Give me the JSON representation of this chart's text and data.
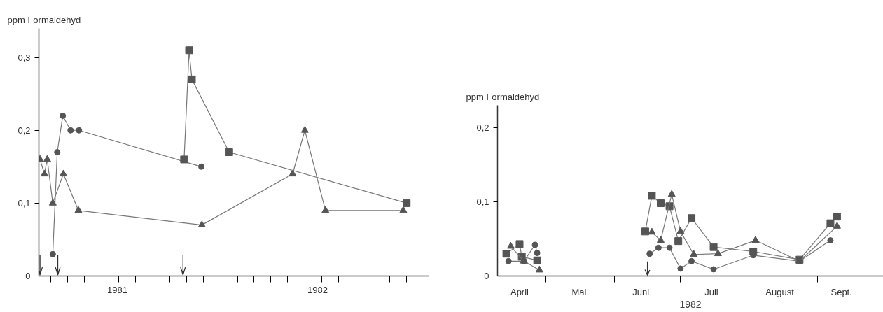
{
  "chart_data": [
    {
      "type": "line",
      "ylabel": "ppm Formaldehyd",
      "grid": false,
      "xlim": [
        "1981-02-08",
        "1983-01-10"
      ],
      "ylim": [
        0,
        0.34
      ],
      "yticks": [
        0,
        {
          "value": 0.1,
          "label": "0,1"
        },
        {
          "value": 0.2,
          "label": "0,2"
        },
        {
          "value": 0.3,
          "label": "0,3"
        }
      ],
      "xticks": [
        {
          "value": "1981-03-01",
          "label": null
        },
        {
          "value": "1981-04-01",
          "label": null
        },
        {
          "value": "1981-05-01",
          "label": null
        },
        {
          "value": "1981-06-01",
          "label": null
        },
        {
          "value": "1981-07-01",
          "label": null
        },
        {
          "value": "1981-08-01",
          "label": null
        },
        {
          "value": "1981-09-01",
          "label": null
        },
        {
          "value": "1981-10-01",
          "label": null
        },
        {
          "value": "1981-11-01",
          "label": null
        },
        {
          "value": "1981-12-01",
          "label": null
        },
        {
          "value": "1982-01-01",
          "label": null
        },
        {
          "value": "1982-02-01",
          "label": null
        },
        {
          "value": "1982-03-01",
          "label": null
        },
        {
          "value": "1982-04-01",
          "label": null
        },
        {
          "value": "1982-05-01",
          "label": null
        },
        {
          "value": "1982-06-01",
          "label": null
        },
        {
          "value": "1982-07-01",
          "label": null
        },
        {
          "value": "1982-08-01",
          "label": null
        },
        {
          "value": "1982-09-01",
          "label": null
        },
        {
          "value": "1982-10-01",
          "label": null
        },
        {
          "value": "1982-11-01",
          "label": null
        },
        {
          "value": "1982-12-01",
          "label": null
        },
        {
          "value": "1983-01-01",
          "label": null
        },
        {
          "value": "1981-06-29",
          "label": "1981"
        },
        {
          "value": "1982-06-24",
          "label": "1982"
        }
      ],
      "ref_lines": [
        {
          "axis": "x",
          "value": "1981-02-10"
        },
        {
          "axis": "x",
          "value": "1981-03-14"
        },
        {
          "axis": "x",
          "value": "1981-10-25"
        }
      ],
      "series": [
        {
          "color": "#555555",
          "marker": "triangle",
          "x": [
            "1981-02-10",
            "1981-02-18",
            "1981-02-23",
            "1981-03-05",
            "1981-03-24",
            "1981-04-20",
            "1981-11-28",
            "1982-05-10",
            "1982-06-01",
            "1982-07-08",
            "1982-11-25"
          ],
          "values": [
            0.16,
            0.14,
            0.16,
            0.1,
            0.14,
            0.09,
            0.07,
            0.14,
            0.2,
            0.09,
            0.09
          ]
        },
        {
          "color": "#555555",
          "marker": "circle",
          "x": [
            "1981-03-05",
            "1981-03-13",
            "1981-03-23",
            "1981-04-06",
            "1981-04-21",
            "1981-11-27"
          ],
          "values": [
            0.03,
            0.17,
            0.22,
            0.2,
            0.2,
            0.15
          ]
        },
        {
          "color": "#555555",
          "marker": "square",
          "x": [
            "1981-10-27",
            "1981-11-05",
            "1981-11-10",
            "1982-01-16",
            "1982-12-01"
          ],
          "values": [
            0.16,
            0.31,
            0.27,
            0.17,
            0.1
          ]
        }
      ]
    },
    {
      "type": "line",
      "ylabel": "ppm Formaldehyd",
      "xlabel": "1982",
      "grid": false,
      "xlim": [
        "1982-04-09",
        "1982-10-01"
      ],
      "ylim": [
        0,
        0.23
      ],
      "yticks": [
        0,
        {
          "value": 0.1,
          "label": "0,1"
        },
        {
          "value": 0.2,
          "label": "0,2"
        }
      ],
      "xticks": [
        {
          "value": "1982-05-01",
          "label": null
        },
        {
          "value": "1982-06-01",
          "label": null
        },
        {
          "value": "1982-07-01",
          "label": null
        },
        {
          "value": "1982-08-01",
          "label": null
        },
        {
          "value": "1982-09-01",
          "label": null
        },
        {
          "value": "1982-04-19",
          "label": "April"
        },
        {
          "value": "1982-05-16",
          "label": "Mai"
        },
        {
          "value": "1982-06-13",
          "label": "Juni"
        },
        {
          "value": "1982-07-15",
          "label": "Juli"
        },
        {
          "value": "1982-08-15",
          "label": "August"
        },
        {
          "value": "1982-09-12",
          "label": "Sept."
        }
      ],
      "ref_lines": [
        {
          "axis": "x",
          "value": "1982-06-16"
        }
      ],
      "series": [
        {
          "color": "#555555",
          "marker": "square",
          "x": [
            "1982-04-13",
            "1982-04-19",
            "1982-04-20",
            "1982-04-27",
            "1982-05-20",
            "1982-06-15",
            "1982-06-18",
            "1982-06-22",
            "1982-06-26",
            "1982-06-30",
            "1982-07-06",
            "1982-07-16",
            "1982-08-03",
            "1982-08-24",
            "1982-09-07",
            "1982-09-10"
          ],
          "values": [
            0.03,
            0.043,
            0.026,
            0.021,
            null,
            0.06,
            0.108,
            0.098,
            0.094,
            0.047,
            0.078,
            0.039,
            0.033,
            0.022,
            0.071,
            0.08
          ]
        },
        {
          "color": "#555555",
          "marker": "triangle",
          "x": [
            "1982-04-15",
            "1982-04-21",
            "1982-04-28",
            "1982-05-20",
            "1982-06-18",
            "1982-06-22",
            "1982-06-27",
            "1982-07-01",
            "1982-07-07",
            "1982-07-18",
            "1982-08-04",
            "1982-08-24",
            "1982-09-10"
          ],
          "values": [
            0.04,
            0.02,
            0.008,
            null,
            0.059,
            0.048,
            0.11,
            0.06,
            0.029,
            0.03,
            0.048,
            0.02,
            0.067
          ]
        },
        {
          "color": "#555555",
          "marker": "circle",
          "x": [
            "1982-04-14",
            "1982-04-21",
            "1982-04-26",
            "1982-04-27",
            "1982-05-20",
            "1982-06-17",
            "1982-06-21",
            "1982-06-26",
            "1982-07-01",
            "1982-07-06",
            "1982-07-16",
            "1982-08-03",
            "1982-08-24",
            "1982-09-07"
          ],
          "values": [
            0.02,
            0.02,
            0.042,
            0.031,
            null,
            0.03,
            0.038,
            0.038,
            0.01,
            0.02,
            0.009,
            0.028,
            0.02,
            0.048
          ]
        }
      ]
    }
  ]
}
